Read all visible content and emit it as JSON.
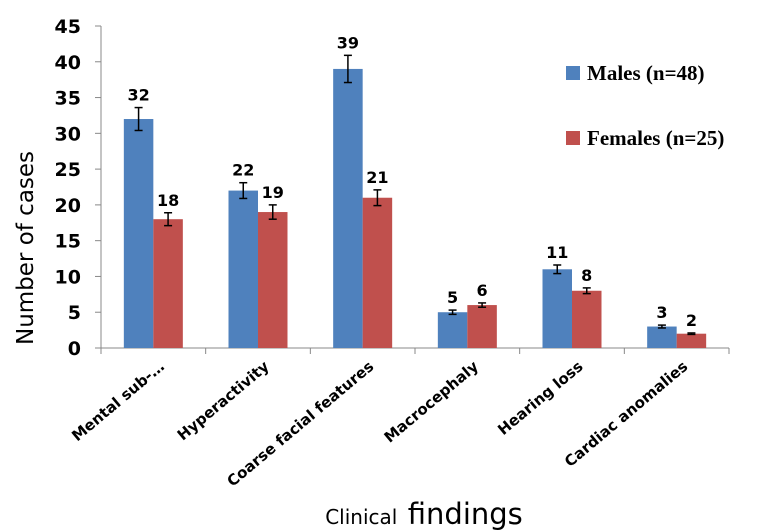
{
  "chart_data": {
    "type": "bar",
    "categories": [
      "Mental sub-…",
      "Hyperactivity",
      "Coarse facial features",
      "Macrocephaly",
      "Hearing loss",
      "Cardiac anomalies"
    ],
    "series": [
      {
        "name": "Males (n=48)",
        "color": "#4f81bd",
        "values": [
          32,
          22,
          39,
          5,
          11,
          3
        ],
        "errors": [
          1.6,
          1.1,
          1.9,
          0.3,
          0.6,
          0.2
        ]
      },
      {
        "name": "Females (n=25)",
        "color": "#c0504d",
        "values": [
          18,
          19,
          21,
          6,
          8,
          2
        ],
        "errors": [
          0.9,
          1.0,
          1.1,
          0.3,
          0.4,
          0.1
        ]
      }
    ],
    "ylabel": "Number of cases",
    "xlabel_part1": "Clinical",
    "xlabel_part2": "findings",
    "ylim": [
      0,
      45
    ],
    "yticks": [
      "0",
      "5",
      "10",
      "15",
      "20",
      "25",
      "30",
      "35",
      "40",
      "45"
    ],
    "grid": false,
    "legend_position": "right"
  }
}
